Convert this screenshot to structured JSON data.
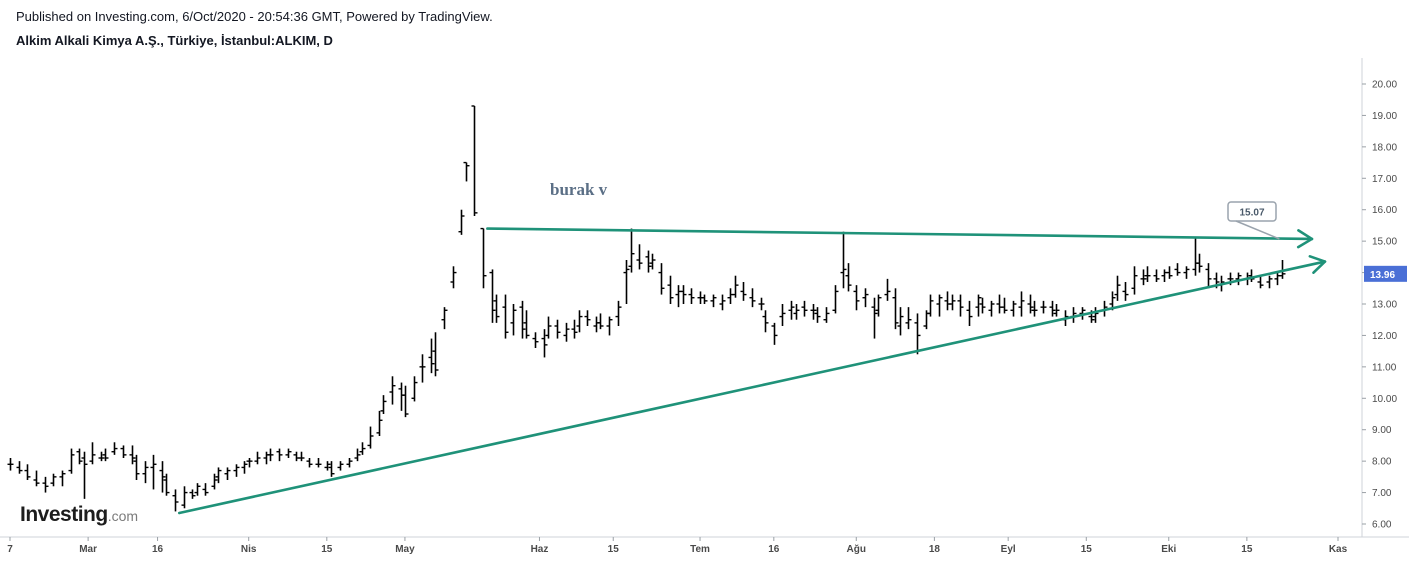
{
  "header": {
    "published": "Published on Investing.com, 6/Oct/2020 - 20:54:36 GMT, Powered by TradingView.",
    "symbol": "Alkim Alkali Kimya A.Ş., Türkiye, İstanbul:ALKIM, D"
  },
  "logo": {
    "brand": "Investing",
    "suffix": ".com"
  },
  "annotation": {
    "text": "burak v",
    "color": "#5b6f86"
  },
  "callout": {
    "label": "15.07",
    "value": 15.07
  },
  "price_tag": {
    "label": "13.96",
    "value": 13.96,
    "color": "#4a6fd6"
  },
  "trend_color": "#1f9279",
  "chart_data": {
    "type": "ohlc-bar",
    "yaxis": {
      "ticks": [
        "6.00",
        "7.00",
        "8.00",
        "9.00",
        "10.00",
        "11.00",
        "12.00",
        "13.00",
        "14.00",
        "15.00",
        "16.00",
        "17.00",
        "18.00",
        "19.00",
        "20.00"
      ],
      "ylim": [
        5.6,
        20.6
      ]
    },
    "xaxis": {
      "ticks": [
        {
          "label": "7",
          "day": 0
        },
        {
          "label": "Mar",
          "day": 18
        },
        {
          "label": "16",
          "day": 34
        },
        {
          "label": "Nis",
          "day": 55
        },
        {
          "label": "15",
          "day": 73
        },
        {
          "label": "May",
          "day": 91
        },
        {
          "label": "Haz",
          "day": 122
        },
        {
          "label": "15",
          "day": 139
        },
        {
          "label": "Tem",
          "day": 159
        },
        {
          "label": "16",
          "day": 176
        },
        {
          "label": "Ağu",
          "day": 195
        },
        {
          "label": "18",
          "day": 213
        },
        {
          "label": "Eyl",
          "day": 230
        },
        {
          "label": "15",
          "day": 248
        },
        {
          "label": "Eki",
          "day": 267
        },
        {
          "label": "15",
          "day": 285
        },
        {
          "label": "Kas",
          "day": 306
        }
      ],
      "xlim": [
        -2,
        306
      ]
    },
    "bars": [
      [
        0,
        7.9,
        8.1,
        7.7,
        7.9
      ],
      [
        2,
        7.8,
        8.0,
        7.6,
        7.7
      ],
      [
        4,
        7.7,
        7.9,
        7.4,
        7.5
      ],
      [
        6,
        7.4,
        7.7,
        7.2,
        7.3
      ],
      [
        8,
        7.3,
        7.5,
        7.0,
        7.2
      ],
      [
        10,
        7.3,
        7.6,
        7.2,
        7.5
      ],
      [
        12,
        7.5,
        7.7,
        7.2,
        7.6
      ],
      [
        14,
        7.7,
        8.4,
        7.6,
        8.2
      ],
      [
        16,
        8.3,
        8.4,
        7.9,
        8.0
      ],
      [
        17,
        8.1,
        8.3,
        6.8,
        7.9
      ],
      [
        19,
        8.0,
        8.6,
        7.9,
        8.2
      ],
      [
        21,
        8.1,
        8.3,
        8.0,
        8.1
      ],
      [
        22,
        8.2,
        8.4,
        8.0,
        8.1
      ],
      [
        24,
        8.3,
        8.6,
        8.2,
        8.4
      ],
      [
        26,
        8.4,
        8.5,
        8.1,
        8.2
      ],
      [
        28,
        8.2,
        8.5,
        7.9,
        8.1
      ],
      [
        29,
        8.0,
        8.2,
        7.4,
        7.6
      ],
      [
        31,
        7.6,
        8.0,
        7.3,
        7.8
      ],
      [
        33,
        7.8,
        8.2,
        7.1,
        7.9
      ],
      [
        35,
        7.7,
        8.0,
        7.0,
        7.5
      ],
      [
        36,
        7.4,
        7.6,
        6.9,
        7.0
      ],
      [
        38,
        6.9,
        7.1,
        6.4,
        6.7
      ],
      [
        40,
        6.6,
        7.2,
        6.5,
        7.0
      ],
      [
        42,
        7.0,
        7.1,
        6.8,
        6.9
      ],
      [
        43,
        7.0,
        7.3,
        6.9,
        7.2
      ],
      [
        45,
        7.1,
        7.3,
        6.9,
        7.0
      ],
      [
        47,
        7.2,
        7.6,
        7.1,
        7.4
      ],
      [
        48,
        7.5,
        7.8,
        7.3,
        7.7
      ],
      [
        50,
        7.6,
        7.8,
        7.4,
        7.7
      ],
      [
        52,
        7.7,
        7.9,
        7.5,
        7.8
      ],
      [
        54,
        7.8,
        8.0,
        7.6,
        7.9
      ],
      [
        55,
        8.0,
        8.1,
        7.8,
        8.0
      ],
      [
        57,
        8.0,
        8.3,
        7.9,
        8.1
      ],
      [
        59,
        8.1,
        8.3,
        7.9,
        8.2
      ],
      [
        60,
        8.2,
        8.4,
        8.0,
        8.2
      ],
      [
        62,
        8.3,
        8.4,
        8.0,
        8.2
      ],
      [
        64,
        8.2,
        8.4,
        8.1,
        8.3
      ],
      [
        66,
        8.2,
        8.3,
        8.0,
        8.1
      ],
      [
        67,
        8.1,
        8.3,
        8.0,
        8.1
      ],
      [
        69,
        8.0,
        8.1,
        7.8,
        7.9
      ],
      [
        71,
        7.9,
        8.1,
        7.8,
        7.9
      ],
      [
        73,
        7.8,
        8.0,
        7.7,
        7.9
      ],
      [
        74,
        7.8,
        8.0,
        7.5,
        7.6
      ],
      [
        76,
        7.8,
        8.0,
        7.7,
        7.9
      ],
      [
        78,
        7.9,
        8.1,
        7.8,
        8.0
      ],
      [
        80,
        8.1,
        8.4,
        8.0,
        8.2
      ],
      [
        81,
        8.3,
        8.6,
        8.2,
        8.4
      ],
      [
        83,
        8.5,
        9.1,
        8.4,
        8.8
      ],
      [
        85,
        8.9,
        9.6,
        8.8,
        9.3
      ],
      [
        86,
        9.6,
        10.1,
        9.5,
        9.9
      ],
      [
        88,
        10.2,
        10.7,
        9.8,
        10.4
      ],
      [
        90,
        10.3,
        10.5,
        9.6,
        10.1
      ],
      [
        91,
        10.1,
        10.4,
        9.4,
        9.5
      ],
      [
        93,
        10.0,
        10.7,
        9.9,
        10.5
      ],
      [
        95,
        11.0,
        11.4,
        10.5,
        11.0
      ],
      [
        97,
        11.3,
        11.9,
        10.8,
        11.1
      ],
      [
        98,
        11.5,
        12.1,
        10.7,
        10.9
      ],
      [
        100,
        12.5,
        12.9,
        12.2,
        12.8
      ],
      [
        102,
        13.7,
        14.2,
        13.5,
        14.0
      ],
      [
        104,
        15.3,
        16.0,
        15.2,
        15.8
      ],
      [
        105,
        17.5,
        17.5,
        16.9,
        17.4
      ],
      [
        107,
        19.3,
        19.3,
        15.8,
        15.9
      ],
      [
        109,
        15.4,
        15.4,
        13.5,
        13.9
      ],
      [
        111,
        14.0,
        14.1,
        12.4,
        12.8
      ],
      [
        112,
        13.1,
        13.3,
        12.4,
        12.6
      ],
      [
        114,
        12.9,
        13.3,
        11.9,
        12.1
      ],
      [
        116,
        12.4,
        13.0,
        12.0,
        12.8
      ],
      [
        118,
        12.9,
        13.1,
        11.9,
        12.2
      ],
      [
        119,
        12.4,
        12.8,
        11.9,
        12.0
      ],
      [
        121,
        11.9,
        12.1,
        11.6,
        11.8
      ],
      [
        123,
        11.9,
        12.2,
        11.3,
        11.7
      ],
      [
        124,
        12.0,
        12.6,
        11.9,
        12.3
      ],
      [
        126,
        12.3,
        12.5,
        11.9,
        12.1
      ],
      [
        128,
        12.0,
        12.4,
        11.8,
        12.2
      ],
      [
        130,
        12.2,
        12.5,
        11.9,
        12.1
      ],
      [
        131,
        12.3,
        12.8,
        12.1,
        12.6
      ],
      [
        133,
        12.6,
        12.8,
        12.3,
        12.5
      ],
      [
        135,
        12.3,
        12.6,
        12.1,
        12.4
      ],
      [
        136,
        12.4,
        12.7,
        12.2,
        12.3
      ],
      [
        138,
        12.3,
        12.6,
        12.0,
        12.5
      ],
      [
        140,
        12.6,
        13.1,
        12.3,
        12.9
      ],
      [
        142,
        14.0,
        14.4,
        13.0,
        14.1
      ],
      [
        143,
        14.2,
        15.4,
        14.0,
        14.6
      ],
      [
        145,
        14.4,
        14.9,
        14.1,
        14.3
      ],
      [
        147,
        14.5,
        14.7,
        14.0,
        14.2
      ],
      [
        148,
        14.3,
        14.6,
        14.1,
        14.4
      ],
      [
        150,
        14.0,
        14.3,
        13.3,
        13.5
      ],
      [
        152,
        13.6,
        13.9,
        13.0,
        13.2
      ],
      [
        154,
        13.3,
        13.6,
        12.9,
        13.4
      ],
      [
        155,
        13.4,
        13.6,
        13.0,
        13.3
      ],
      [
        157,
        13.3,
        13.5,
        13.0,
        13.2
      ],
      [
        159,
        13.2,
        13.4,
        13.0,
        13.2
      ],
      [
        160,
        13.2,
        13.3,
        13.0,
        13.1
      ],
      [
        162,
        13.1,
        13.3,
        12.9,
        13.2
      ],
      [
        164,
        13.0,
        13.3,
        12.8,
        13.1
      ],
      [
        166,
        13.2,
        13.5,
        13.0,
        13.3
      ],
      [
        167,
        13.3,
        13.9,
        13.2,
        13.6
      ],
      [
        169,
        13.4,
        13.7,
        13.1,
        13.3
      ],
      [
        171,
        13.2,
        13.5,
        12.9,
        13.1
      ],
      [
        173,
        13.0,
        13.2,
        12.8,
        13.0
      ],
      [
        174,
        12.6,
        12.8,
        12.1,
        12.4
      ],
      [
        176,
        12.3,
        12.4,
        11.7,
        12.0
      ],
      [
        178,
        12.6,
        13.0,
        12.3,
        12.7
      ],
      [
        180,
        12.8,
        13.1,
        12.5,
        12.9
      ],
      [
        181,
        12.7,
        13.0,
        12.5,
        12.8
      ],
      [
        183,
        12.9,
        13.1,
        12.6,
        12.8
      ],
      [
        185,
        12.8,
        13.0,
        12.5,
        12.8
      ],
      [
        186,
        12.7,
        12.9,
        12.4,
        12.6
      ],
      [
        188,
        12.5,
        12.9,
        12.4,
        12.7
      ],
      [
        190,
        12.8,
        13.6,
        12.7,
        13.4
      ],
      [
        192,
        14.0,
        15.3,
        13.5,
        14.1
      ],
      [
        193,
        13.9,
        14.3,
        13.4,
        13.6
      ],
      [
        195,
        13.4,
        13.6,
        12.8,
        13.1
      ],
      [
        197,
        13.2,
        13.5,
        12.9,
        13.3
      ],
      [
        199,
        12.9,
        13.2,
        11.9,
        12.7
      ],
      [
        200,
        12.8,
        13.3,
        12.6,
        13.2
      ],
      [
        202,
        13.3,
        13.8,
        13.1,
        13.4
      ],
      [
        204,
        13.2,
        13.5,
        12.2,
        12.4
      ],
      [
        205,
        12.3,
        12.9,
        12.0,
        12.6
      ],
      [
        207,
        12.4,
        12.9,
        12.2,
        12.5
      ],
      [
        209,
        12.4,
        12.7,
        11.4,
        12.0
      ],
      [
        211,
        12.3,
        12.8,
        12.2,
        12.7
      ],
      [
        212,
        12.7,
        13.3,
        12.6,
        13.1
      ],
      [
        214,
        13.0,
        13.3,
        12.6,
        13.2
      ],
      [
        216,
        13.1,
        13.4,
        12.8,
        13.0
      ],
      [
        217,
        13.0,
        13.3,
        12.8,
        13.1
      ],
      [
        219,
        13.1,
        13.3,
        12.6,
        12.9
      ],
      [
        221,
        12.8,
        13.1,
        12.3,
        12.6
      ],
      [
        223,
        12.9,
        13.3,
        12.6,
        13.2
      ],
      [
        224,
        13.0,
        13.2,
        12.7,
        12.9
      ],
      [
        226,
        12.8,
        13.1,
        12.6,
        13.0
      ],
      [
        228,
        13.0,
        13.3,
        12.7,
        12.9
      ],
      [
        229,
        12.9,
        13.2,
        12.7,
        12.8
      ],
      [
        231,
        12.8,
        13.1,
        12.6,
        13.0
      ],
      [
        233,
        12.9,
        13.4,
        12.6,
        13.1
      ],
      [
        235,
        13.0,
        13.3,
        12.7,
        12.9
      ],
      [
        236,
        12.8,
        13.1,
        12.6,
        12.8
      ],
      [
        238,
        12.9,
        13.1,
        12.7,
        12.9
      ],
      [
        240,
        12.9,
        13.1,
        12.6,
        12.8
      ],
      [
        241,
        12.7,
        13.0,
        12.6,
        12.8
      ],
      [
        243,
        12.5,
        12.8,
        12.3,
        12.6
      ],
      [
        245,
        12.6,
        12.9,
        12.4,
        12.7
      ],
      [
        247,
        12.7,
        12.9,
        12.5,
        12.8
      ],
      [
        249,
        12.6,
        12.8,
        12.4,
        12.5
      ],
      [
        250,
        12.6,
        12.9,
        12.4,
        12.7
      ],
      [
        252,
        12.8,
        13.1,
        12.6,
        12.9
      ],
      [
        254,
        13.0,
        13.4,
        12.8,
        13.2
      ],
      [
        255,
        13.3,
        13.9,
        13.1,
        13.6
      ],
      [
        257,
        13.4,
        13.7,
        13.1,
        13.3
      ],
      [
        259,
        13.5,
        14.2,
        13.3,
        13.9
      ],
      [
        261,
        13.8,
        14.1,
        13.6,
        13.8
      ],
      [
        262,
        13.9,
        14.2,
        13.7,
        13.9
      ],
      [
        264,
        13.9,
        14.1,
        13.7,
        13.8
      ],
      [
        266,
        13.9,
        14.1,
        13.7,
        14.0
      ],
      [
        267,
        14.0,
        14.2,
        13.8,
        13.9
      ],
      [
        269,
        14.1,
        14.3,
        13.9,
        14.0
      ],
      [
        271,
        14.0,
        14.2,
        13.8,
        14.1
      ],
      [
        273,
        14.1,
        15.1,
        13.9,
        14.3
      ],
      [
        274,
        14.3,
        14.6,
        14.0,
        14.2
      ],
      [
        276,
        14.1,
        14.3,
        13.5,
        13.8
      ],
      [
        278,
        13.8,
        14.0,
        13.5,
        13.7
      ],
      [
        279,
        13.6,
        13.9,
        13.4,
        13.7
      ],
      [
        281,
        13.8,
        14.0,
        13.6,
        13.8
      ],
      [
        283,
        13.8,
        14.0,
        13.6,
        13.9
      ],
      [
        285,
        13.8,
        14.0,
        13.6,
        13.8
      ],
      [
        286,
        13.9,
        14.1,
        13.7,
        13.8
      ],
      [
        288,
        13.7,
        13.9,
        13.5,
        13.6
      ],
      [
        290,
        13.7,
        13.9,
        13.5,
        13.8
      ],
      [
        292,
        13.8,
        14.0,
        13.6,
        13.9
      ],
      [
        293,
        13.9,
        14.4,
        13.8,
        13.96
      ]
    ],
    "drawings": [
      {
        "type": "line",
        "points": [
          [
            110,
            15.4
          ],
          [
            300,
            15.07
          ]
        ],
        "arrow": true
      },
      {
        "type": "line",
        "points": [
          [
            39,
            6.35
          ],
          [
            303,
            14.35
          ]
        ],
        "arrow": true
      }
    ]
  }
}
